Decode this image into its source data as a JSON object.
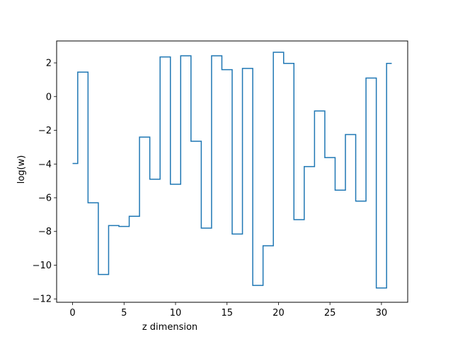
{
  "chart_data": {
    "type": "line",
    "drawstyle": "steps-mid",
    "title": "",
    "xlabel": "z dimension",
    "ylabel": "log(w)",
    "xlim": [
      -1.55,
      32.55
    ],
    "ylim": [
      -12.2,
      3.3
    ],
    "xticks": [
      0,
      5,
      10,
      15,
      20,
      25,
      30
    ],
    "yticks": [
      -12,
      -10,
      -8,
      -6,
      -4,
      -2,
      0,
      2
    ],
    "ytick_labels": [
      "−12",
      "−10",
      "−8",
      "−6",
      "−4",
      "−2",
      "0",
      "2"
    ],
    "grid": false,
    "line_color": "#1f77b4",
    "series": [
      {
        "x": [
          0,
          1,
          2,
          3,
          4,
          5,
          6,
          7,
          8,
          9,
          10,
          11,
          12,
          13,
          14,
          15,
          16,
          17,
          18,
          19,
          20,
          21,
          22,
          23,
          24,
          25,
          26,
          27,
          28,
          29,
          30,
          31
        ],
        "values": [
          -3.97,
          1.45,
          -6.3,
          -10.55,
          -7.65,
          -7.7,
          -7.1,
          -2.4,
          -4.9,
          2.35,
          -5.2,
          2.42,
          -2.65,
          -7.8,
          2.42,
          1.6,
          -8.15,
          1.67,
          -11.2,
          -8.85,
          2.63,
          1.97,
          -7.3,
          -4.15,
          -0.85,
          -3.62,
          -5.55,
          -2.25,
          -6.2,
          1.1,
          -11.35,
          1.97
        ]
      }
    ]
  }
}
